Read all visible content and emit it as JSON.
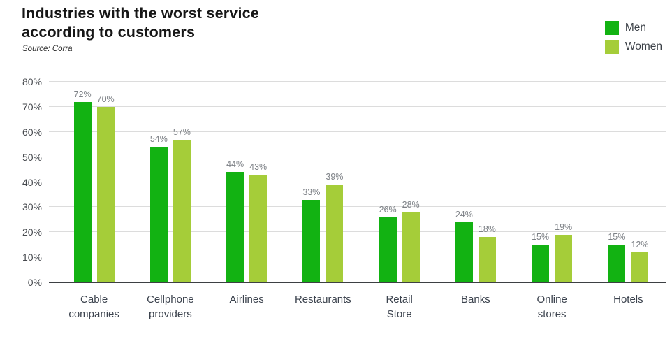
{
  "header": {
    "title_line1": "Industries with the worst service",
    "title_line2": "according to customers",
    "source": "Source: Corra"
  },
  "legend": {
    "items": [
      {
        "label": "Men",
        "color": "#12b212"
      },
      {
        "label": "Women",
        "color": "#a5cd39"
      }
    ]
  },
  "chart_data": {
    "type": "bar",
    "title": "Industries with the worst service according to customers",
    "source": "Source: Corra",
    "categories": [
      "Cable companies",
      "Cellphone providers",
      "Airlines",
      "Restaurants",
      "Retail Store",
      "Banks",
      "Online stores",
      "Hotels"
    ],
    "category_lines": [
      [
        "Cable",
        "companies"
      ],
      [
        "Cellphone",
        "providers"
      ],
      [
        "Airlines"
      ],
      [
        "Restaurants"
      ],
      [
        "Retail",
        "Store"
      ],
      [
        "Banks"
      ],
      [
        "Online",
        "stores"
      ],
      [
        "Hotels"
      ]
    ],
    "series": [
      {
        "name": "Men",
        "color": "#12b212",
        "values": [
          72,
          54,
          44,
          33,
          26,
          24,
          15,
          15
        ]
      },
      {
        "name": "Women",
        "color": "#a5cd39",
        "values": [
          70,
          57,
          43,
          39,
          28,
          18,
          19,
          12
        ]
      }
    ],
    "value_suffix": "%",
    "xlabel": "",
    "ylabel": "",
    "ylim": [
      0,
      80
    ],
    "ytick_step": 10,
    "ytick_labels": [
      "0%",
      "10%",
      "20%",
      "30%",
      "40%",
      "50%",
      "60%",
      "70%",
      "80%"
    ],
    "grid": true,
    "legend_position": "top-right",
    "colors": {
      "grid": "#dcdcdc",
      "axis": "#3d4043",
      "value_label": "#7d8186",
      "ytick_label": "#46494e",
      "category_label": "#3c434e",
      "title": "#161616"
    }
  }
}
